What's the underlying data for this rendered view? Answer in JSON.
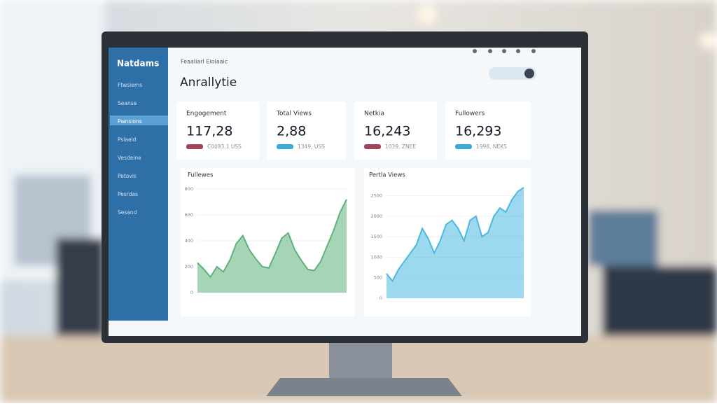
{
  "sidebar": {
    "brand": "Natdams",
    "items": [
      "Ftwsiems",
      "Seanse",
      "Pwnsions",
      "Pslaeid",
      "Vesdeine",
      "Petovis",
      "Pesrdas",
      "Sesand"
    ]
  },
  "header": {
    "breadcrumb": "Feaaliarl Eiolaaic",
    "title": "Anrallytie"
  },
  "cards": [
    {
      "label": "Engogement",
      "value": "117,28",
      "sub": "C0083.1 USS",
      "badge_color": "#a0455a"
    },
    {
      "label": "Total Views",
      "value": "2,88",
      "sub": "1349, USS",
      "badge_color": "#3aa9d6"
    },
    {
      "label": "Netkia",
      "value": "16,243",
      "sub": "1039, ZNEE",
      "badge_color": "#a0455a"
    },
    {
      "label": "Fullowers",
      "value": "16,293",
      "sub": "1998, NEKS",
      "badge_color": "#3aa9d6"
    }
  ],
  "charts": [
    {
      "type": "area",
      "title": "Fullewes",
      "color": "#5cb37a",
      "ylim": [
        0,
        800
      ],
      "yticks": [
        0,
        200,
        400,
        600,
        800
      ],
      "values": [
        230,
        180,
        120,
        200,
        160,
        250,
        380,
        440,
        330,
        260,
        200,
        190,
        300,
        420,
        460,
        330,
        250,
        180,
        170,
        240,
        360,
        480,
        620,
        720
      ]
    },
    {
      "type": "area",
      "title": "Pertla Views",
      "color": "#4bb8e0",
      "ylim": [
        0,
        2800
      ],
      "yticks": [
        0,
        500,
        1000,
        1500,
        2000,
        2500
      ],
      "values": [
        600,
        420,
        700,
        900,
        1100,
        1300,
        1700,
        1450,
        1100,
        1400,
        1800,
        1900,
        1700,
        1400,
        1900,
        2000,
        1500,
        1600,
        2000,
        2200,
        2100,
        2400,
        2600,
        2700
      ]
    }
  ]
}
